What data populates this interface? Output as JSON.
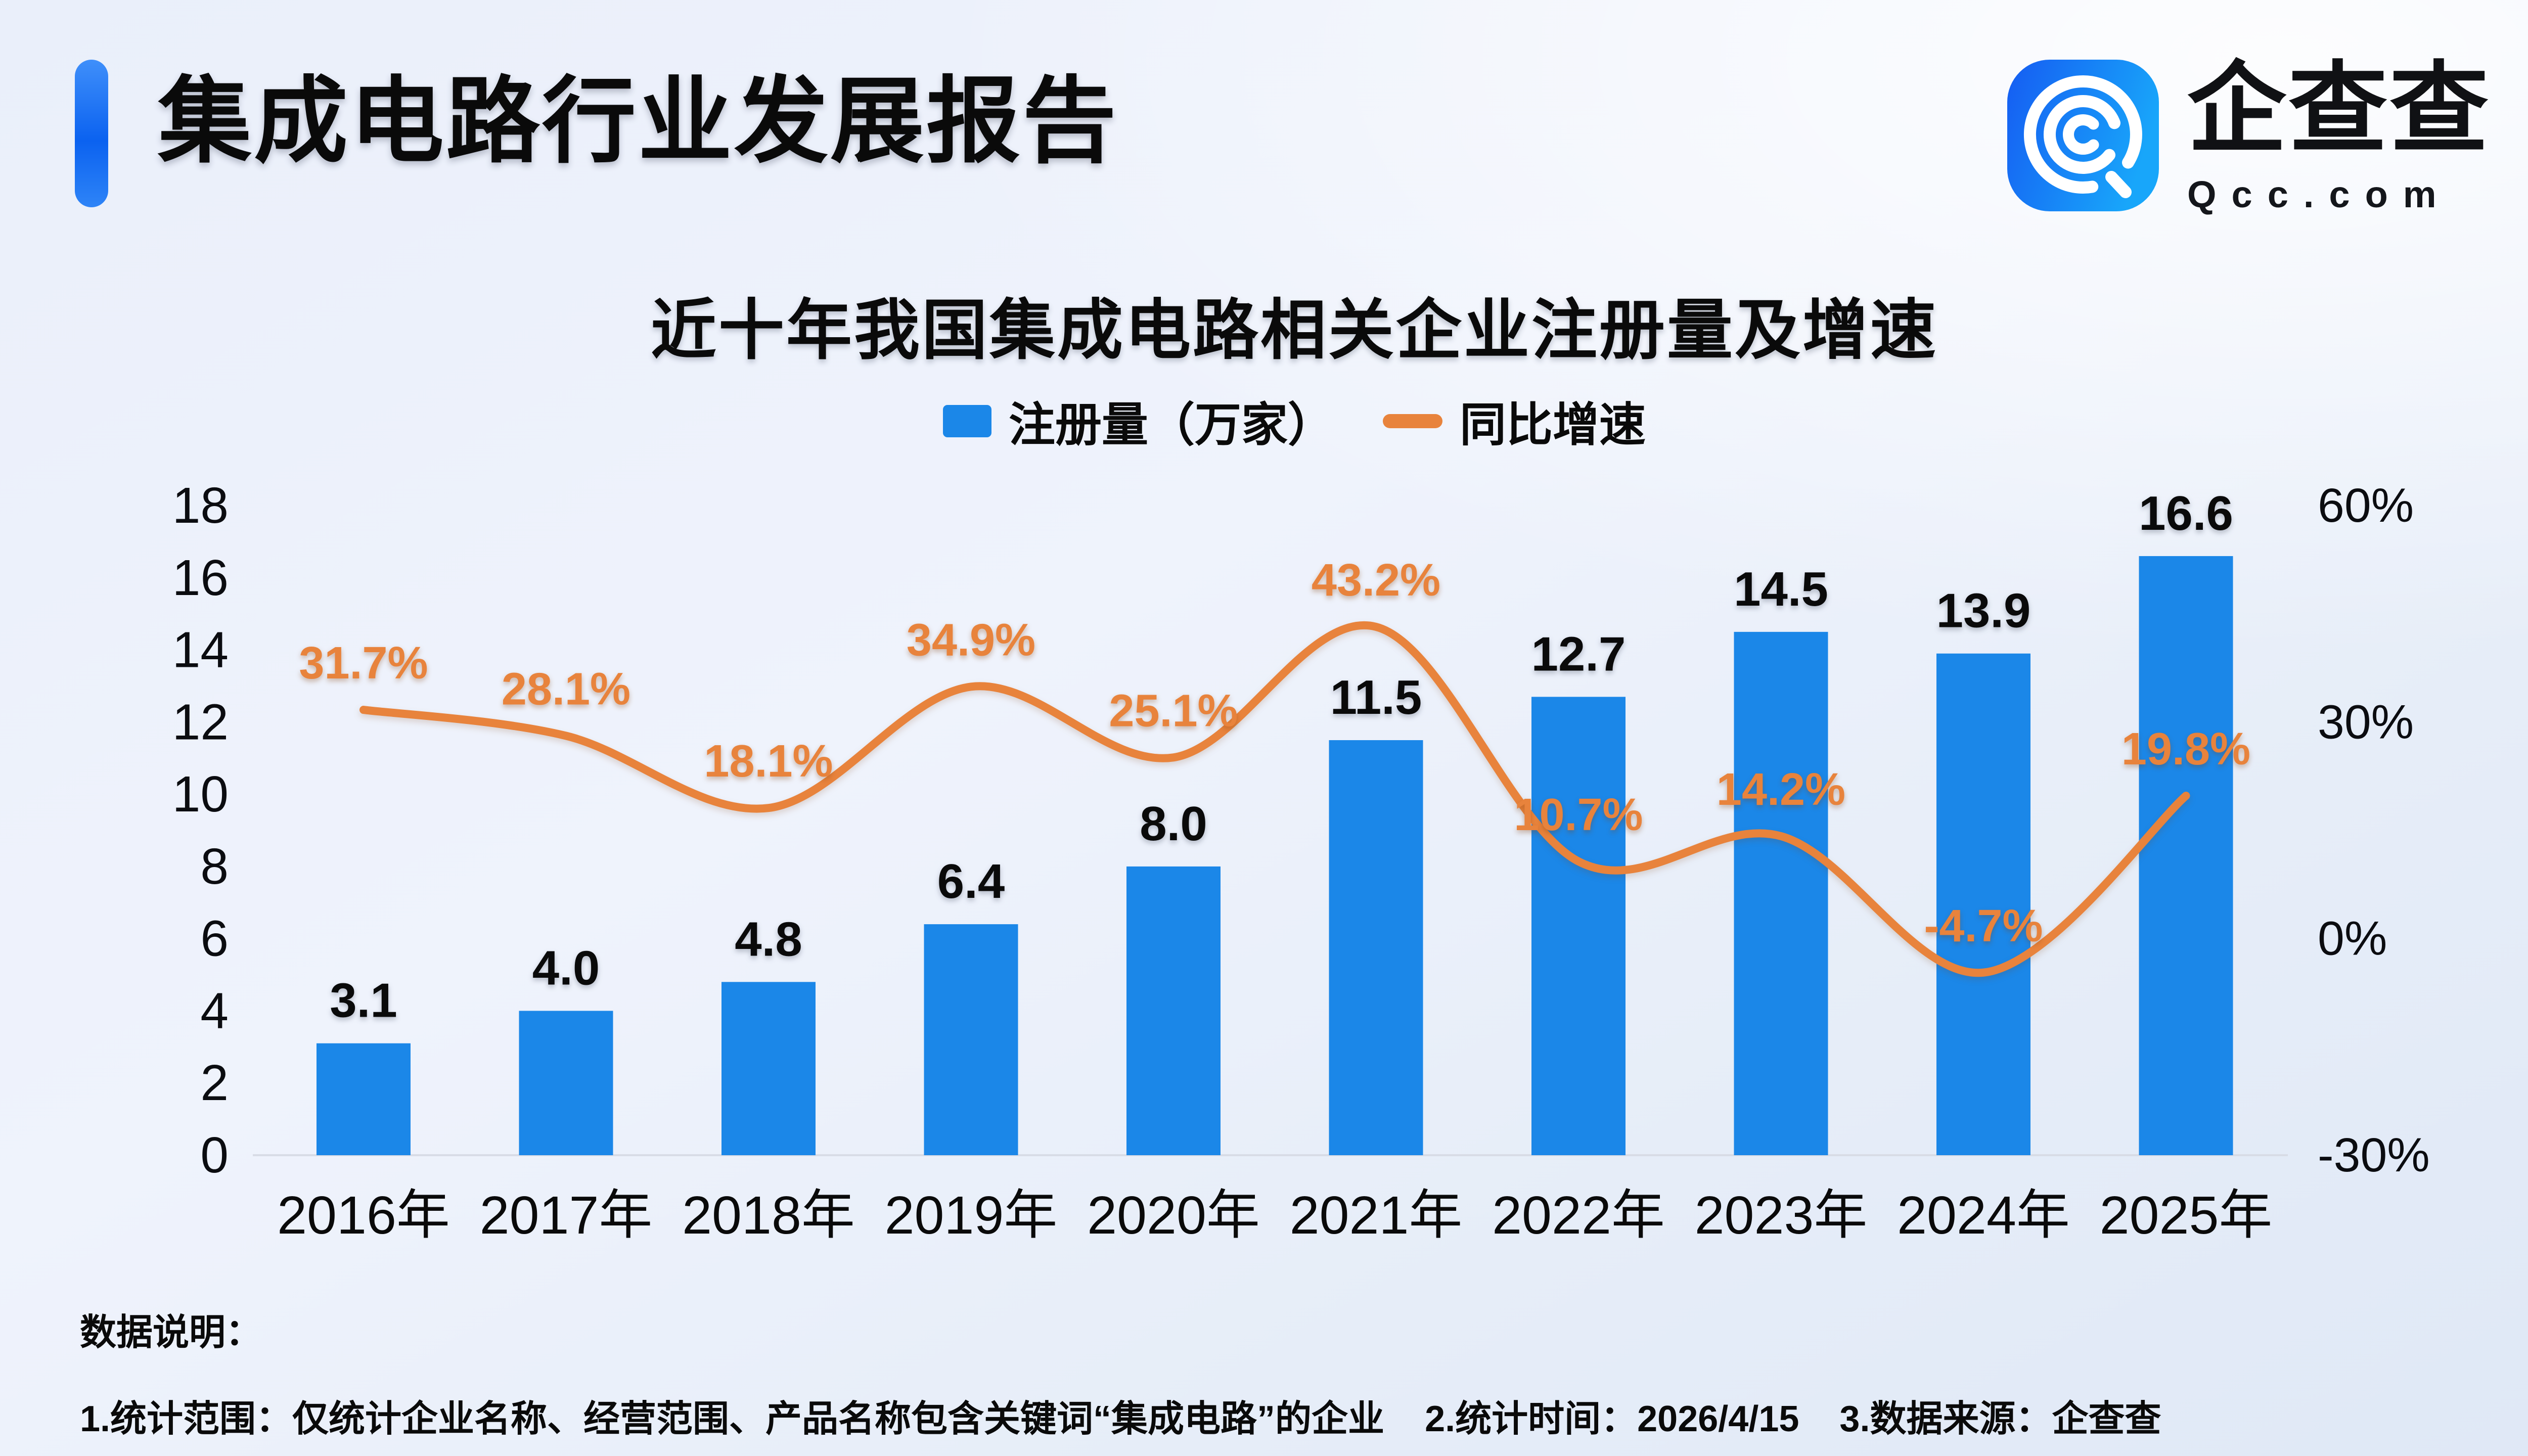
{
  "colors": {
    "background": "#edf1fa",
    "bar": "#1b87e8",
    "line": "#e8833c",
    "accent": "#0b62f0",
    "text": "#0a0a0a",
    "axis_line": "#d8dce6"
  },
  "header": {
    "title": "集成电路行业发展报告"
  },
  "logo": {
    "icon": "qcc-spiral-q-icon",
    "name": "企查查",
    "domain": "Qcc.com"
  },
  "chart": {
    "title": "近十年我国集成电路相关企业注册量及增速",
    "legend": [
      {
        "label": "注册量（万家）",
        "marker": "bar"
      },
      {
        "label": "同比增速",
        "marker": "line"
      }
    ]
  },
  "chart_data": {
    "type": "bar+line",
    "title": "近十年我国集成电路相关企业注册量及增速",
    "categories": [
      "2016年",
      "2017年",
      "2018年",
      "2019年",
      "2020年",
      "2021年",
      "2022年",
      "2023年",
      "2024年",
      "2025年"
    ],
    "series": [
      {
        "name": "注册量（万家）",
        "type": "bar",
        "axis": "left",
        "values": [
          3.1,
          4.0,
          4.8,
          6.4,
          8.0,
          11.5,
          12.7,
          14.5,
          13.9,
          16.6
        ],
        "labels": [
          "3.1",
          "4.0",
          "4.8",
          "6.4",
          "8.0",
          "11.5",
          "12.7",
          "14.5",
          "13.9",
          "16.6"
        ]
      },
      {
        "name": "同比增速",
        "type": "line",
        "axis": "right",
        "values": [
          31.7,
          28.1,
          18.1,
          34.9,
          25.1,
          43.2,
          10.7,
          14.2,
          -4.7,
          19.8
        ],
        "labels": [
          "31.7%",
          "28.1%",
          "18.1%",
          "34.9%",
          "25.1%",
          "43.2%",
          "10.7%",
          "14.2%",
          "-4.7%",
          "19.8%"
        ]
      }
    ],
    "y_left": {
      "min": 0,
      "max": 18,
      "step": 2,
      "ticks": [
        0,
        2,
        4,
        6,
        8,
        10,
        12,
        14,
        16,
        18
      ]
    },
    "y_right": {
      "min": -30,
      "max": 60,
      "step": 30,
      "suffix": "%",
      "ticks": [
        -30,
        0,
        30,
        60
      ]
    },
    "grid": false,
    "legend_position": "top"
  },
  "notes": {
    "heading": "数据说明：",
    "line": "1.统计范围：仅统计企业名称、经营范围、产品名称包含关键词“集成电路”的企业    2.统计时间：2026/4/15    3.数据来源：企查查"
  }
}
